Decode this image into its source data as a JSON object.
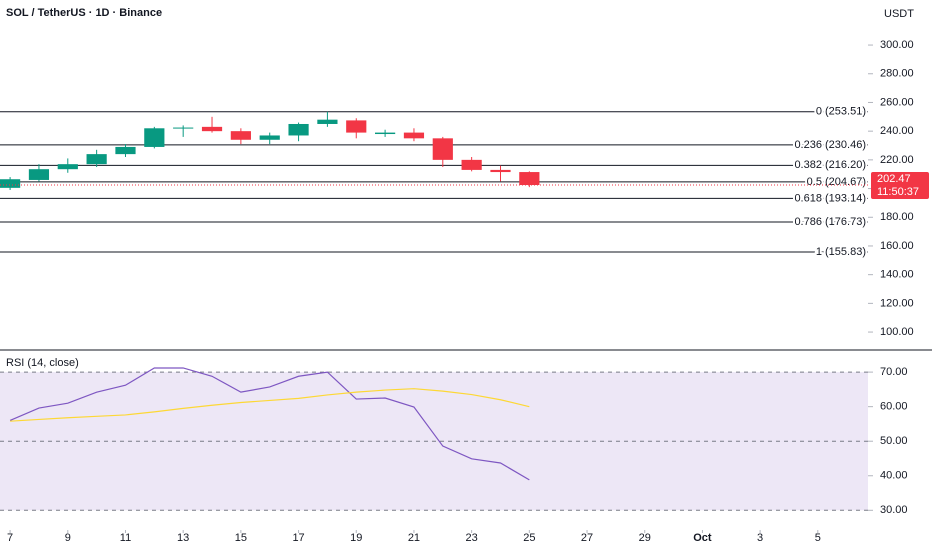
{
  "chart_data": [
    {
      "type": "candlestick",
      "title": "SOL / TetherUS · 1D · Binance",
      "axis_label": "USDT",
      "x": [
        7,
        8,
        9,
        10,
        11,
        12,
        13,
        14,
        15,
        16,
        17,
        18,
        19,
        20,
        21,
        22,
        23,
        24,
        25
      ],
      "open": [
        200.5,
        206,
        213.5,
        217,
        224,
        229,
        242,
        243,
        240,
        234,
        237,
        245,
        247.5,
        238,
        239,
        235,
        220,
        213,
        211.5
      ],
      "high": [
        208,
        217,
        221,
        227,
        231,
        243,
        244,
        250,
        242,
        239,
        246,
        253.5,
        249,
        241,
        242,
        236,
        222,
        216,
        212
      ],
      "low": [
        199,
        205,
        211,
        215,
        222,
        228,
        236,
        239,
        231,
        231,
        233,
        243,
        235,
        236,
        233,
        215,
        212,
        205,
        201
      ],
      "close": [
        206.5,
        213.5,
        217,
        224,
        229,
        242,
        242.5,
        240,
        234,
        237,
        245,
        248,
        239,
        239,
        235,
        220,
        213,
        211.5,
        202.47
      ],
      "up_color": "#089981",
      "down_color": "#f23645",
      "xlim": [
        6.65,
        36.74
      ],
      "ylim": [
        87.5,
        331.4
      ],
      "yticks": [
        {
          "value": 300,
          "label": "300.00"
        },
        {
          "value": 280,
          "label": "280.00"
        },
        {
          "value": 260,
          "label": "260.00"
        },
        {
          "value": 240,
          "label": "240.00"
        },
        {
          "value": 220,
          "label": "220.00"
        },
        {
          "value": 200,
          "label": "200.00"
        },
        {
          "value": 180,
          "label": "180.00"
        },
        {
          "value": 160,
          "label": "160.00"
        },
        {
          "value": 140,
          "label": "140.00"
        },
        {
          "value": 120,
          "label": "120.00"
        },
        {
          "value": 100,
          "label": "100.00"
        }
      ],
      "fib_levels": [
        {
          "label": "0 (253.51)",
          "value": 253.51
        },
        {
          "label": "0.236 (230.46)",
          "value": 230.46
        },
        {
          "label": "0.382 (216.20)",
          "value": 216.2
        },
        {
          "label": "0.5 (204.67)",
          "value": 204.67
        },
        {
          "label": "0.618 (193.14)",
          "value": 193.14
        },
        {
          "label": "0.786 (176.73)",
          "value": 176.73
        },
        {
          "label": "1 (155.83)",
          "value": 155.83
        }
      ],
      "last_price": 202.47,
      "countdown": "11:50:37"
    },
    {
      "type": "line",
      "title": "RSI (14, close)",
      "x": [
        7,
        8,
        9,
        10,
        11,
        12,
        13,
        14,
        15,
        16,
        17,
        18,
        19,
        20,
        21,
        22,
        23,
        24,
        25
      ],
      "series": [
        {
          "color": "#7e57c2",
          "values": [
            56,
            59.6,
            61,
            64.2,
            66.2,
            71.2,
            71.2,
            68.8,
            64.2,
            65.7,
            68.8,
            70,
            62.2,
            62.5,
            59.9,
            48.6,
            44.9,
            43.7,
            38.8
          ]
        },
        {
          "color": "#fdd835",
          "values": [
            55.8,
            56.3,
            56.8,
            57.2,
            57.6,
            58.5,
            59.5,
            60.4,
            61.2,
            61.8,
            62.4,
            63.4,
            64.2,
            64.8,
            65.2,
            64.5,
            63.5,
            62,
            60
          ]
        }
      ],
      "band": [
        30,
        70
      ],
      "band_color": "#ede7f6",
      "xlim": [
        6.65,
        36.74
      ],
      "ylim": [
        24.3,
        76.4
      ],
      "yticks": [
        {
          "value": 70,
          "label": "70.00"
        },
        {
          "value": 60,
          "label": "60.00"
        },
        {
          "value": 50,
          "label": "50.00"
        },
        {
          "value": 40,
          "label": "40.00"
        },
        {
          "value": 30,
          "label": "30.00"
        }
      ],
      "dashed": [
        70,
        50,
        30
      ],
      "xticks": [
        7,
        9,
        11,
        13,
        15,
        17,
        19,
        21,
        23,
        25,
        27,
        29,
        {
          "value": 31,
          "label": "Oct"
        },
        {
          "value": 33,
          "label": "3"
        },
        {
          "value": 35,
          "label": "5"
        }
      ]
    }
  ]
}
